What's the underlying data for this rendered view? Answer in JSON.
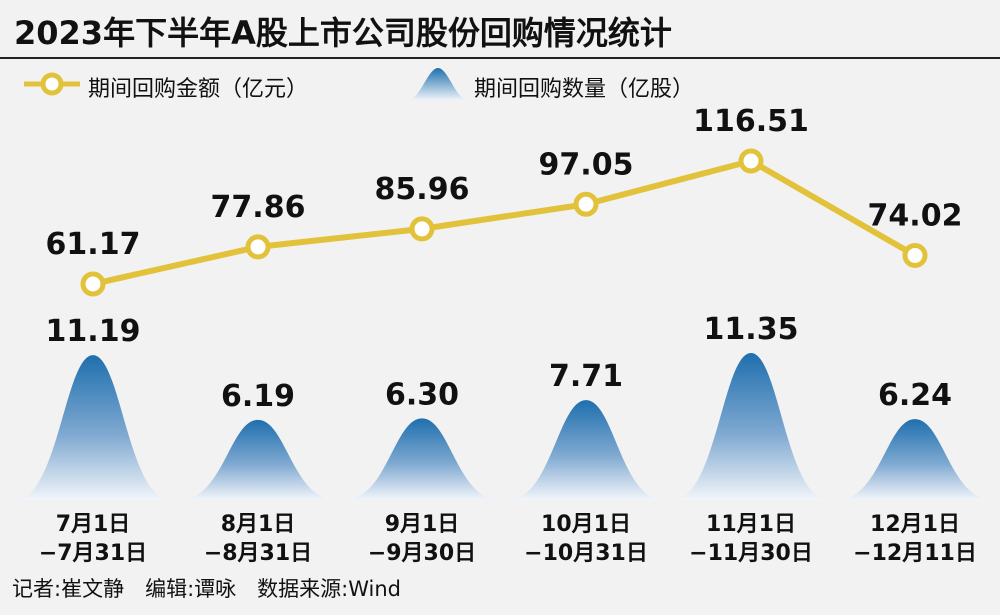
{
  "title": "2023年下半年A股上市公司股份回购情况统计",
  "footer": "记者:崔文静　编辑:谭咏　数据来源:Wind",
  "colors": {
    "line": "#e2c23a",
    "bubble_top": "#1f6fae",
    "bubble_bottom": "#eef3f9",
    "background": "#f2f2f2"
  },
  "chart_data": {
    "type": "line+area",
    "categories": [
      [
        "7月1日",
        "−7月31日"
      ],
      [
        "8月1日",
        "−8月31日"
      ],
      [
        "9月1日",
        "−9月30日"
      ],
      [
        "10月1日",
        "−10月31日"
      ],
      [
        "11月1日",
        "−11月30日"
      ],
      [
        "12月1日",
        "−12月11日"
      ]
    ],
    "series": [
      {
        "name": "期间回购金额（亿元）",
        "type": "line",
        "values": [
          61.17,
          77.86,
          85.96,
          97.05,
          116.51,
          74.02
        ],
        "labels": [
          "61.17",
          "77.86",
          "85.96",
          "97.05",
          "116.51",
          "74.02"
        ]
      },
      {
        "name": "期间回购数量（亿股）",
        "type": "bell-area",
        "values": [
          11.19,
          6.19,
          6.3,
          7.71,
          11.35,
          6.24
        ],
        "labels": [
          "11.19",
          "6.19",
          "6.30",
          "7.71",
          "11.35",
          "6.24"
        ]
      }
    ],
    "legend_position": "top-left",
    "grid": false
  }
}
